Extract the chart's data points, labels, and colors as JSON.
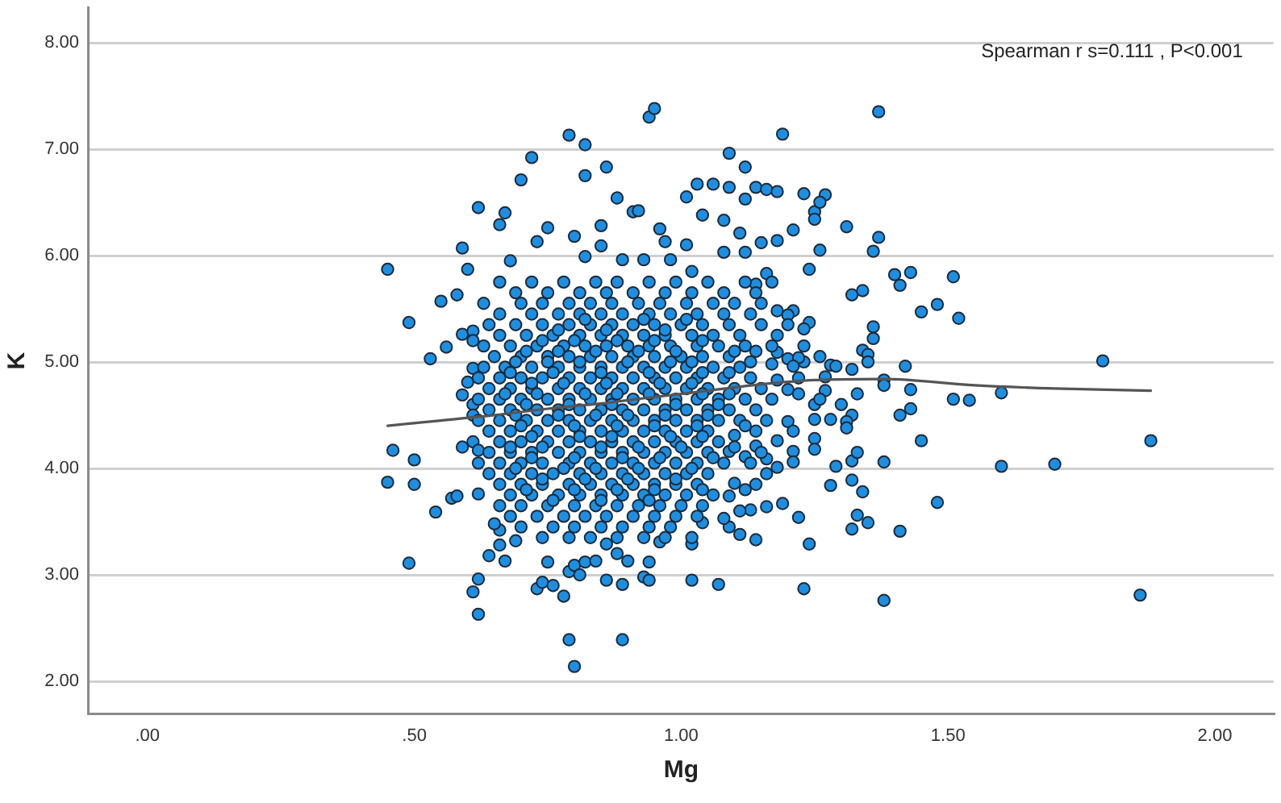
{
  "chart_data": {
    "type": "scatter",
    "xlabel": "Mg",
    "ylabel": "K",
    "annotations": [
      "Spearman r s=0.111 , P<0.001"
    ],
    "xlim": [
      -0.11,
      2.11
    ],
    "ylim": [
      1.69,
      8.33
    ],
    "xticks": [
      {
        "value": 0,
        "label": ".00"
      },
      {
        "value": 0.5,
        "label": ".50"
      },
      {
        "value": 1,
        "label": "1.00"
      },
      {
        "value": 1.5,
        "label": "1.50"
      },
      {
        "value": 2,
        "label": "2.00"
      }
    ],
    "yticks": [
      {
        "value": 2,
        "label": "2.00"
      },
      {
        "value": 3,
        "label": "3.00"
      },
      {
        "value": 4,
        "label": "4.00"
      },
      {
        "value": 5,
        "label": "5.00"
      },
      {
        "value": 6,
        "label": "6.00"
      },
      {
        "value": 7,
        "label": "7.00"
      },
      {
        "value": 8,
        "label": "8.00"
      }
    ],
    "grid": "y",
    "series": [
      {
        "type": "scatter",
        "color": "#1e8fe0",
        "marker": "circle",
        "x": [
          0.45,
          0.49,
          0.55,
          0.58,
          0.59,
          0.6,
          0.62,
          0.53,
          0.56,
          0.59,
          0.61,
          0.61,
          0.61,
          0.6,
          0.59,
          0.61,
          0.61,
          0.46,
          0.5,
          0.45,
          0.5,
          0.54,
          0.57,
          0.58,
          0.59,
          0.61,
          0.62,
          0.62,
          0.62,
          0.49,
          0.61,
          0.62,
          0.62,
          0.94,
          0.95,
          1.37,
          0.79,
          0.82,
          0.72,
          0.7,
          0.82,
          0.86,
          0.88,
          0.67,
          0.66,
          1.09,
          1.12,
          1.19,
          1.03,
          1.06,
          1.01,
          1.09,
          1.14,
          1.16,
          1.18,
          1.12,
          1.04,
          1.08,
          1.23,
          1.27,
          1.25,
          1.21,
          1.11,
          1.15,
          1.18,
          1.26,
          1.24,
          0.91,
          0.92,
          0.85,
          0.8,
          0.75,
          0.73,
          0.96,
          0.97,
          1.01,
          1.08,
          1.12,
          1.16,
          1.14,
          0.68,
          0.82,
          0.85,
          0.89,
          0.93,
          0.98,
          1.02,
          1.18,
          1.21,
          1.24,
          1.23,
          1.2,
          1.23,
          1.28,
          1.27,
          1.25,
          1.17,
          1.14,
          1.26,
          1.25,
          1.31,
          1.37,
          1.36,
          1.4,
          1.43,
          1.41,
          1.51,
          1.32,
          1.34,
          1.45,
          1.48,
          1.52,
          1.2,
          1.36,
          1.36,
          1.34,
          1.35,
          1.35,
          1.18,
          1.22,
          1.21,
          1.29,
          1.32,
          1.27,
          1.42,
          1.79,
          1.38,
          1.38,
          1.43,
          1.51,
          1.54,
          1.6,
          1.33,
          1.26,
          1.3,
          1.32,
          1.43,
          1.41,
          1.31,
          1.31,
          1.45,
          1.88,
          1.21,
          1.21,
          1.29,
          1.32,
          1.33,
          1.38,
          1.6,
          1.7,
          1.28,
          1.32,
          1.34,
          1.19,
          1.22,
          1.48,
          1.33,
          1.35,
          1.32,
          1.41,
          1.24,
          1.23,
          1.38,
          1.86,
          1.18,
          1.2,
          1.2,
          1.25,
          1.28,
          1.25,
          1.25,
          1.18,
          1.22,
          1.18,
          0.79,
          0.89,
          0.8,
          0.73,
          0.74,
          0.76,
          0.78,
          0.79,
          0.8,
          0.81,
          0.75,
          0.82,
          0.84,
          0.86,
          0.89,
          0.9,
          0.93,
          0.94,
          0.94,
          1.02,
          1.07,
          1.02,
          0.96,
          0.88,
          0.86,
          0.69,
          0.67,
          0.64,
          0.66,
          0.66,
          0.65,
          1.04,
          1.11,
          1.14,
          1.09,
          1.16,
          1.13,
          1.11,
          1.08,
          1.14,
          1.16,
          1.14,
          1.12,
          1.1,
          1.09,
          1.1,
          1.12,
          1.09,
          0.66,
          0.72,
          0.78,
          0.84,
          0.88,
          0.94,
          0.99,
          1.05,
          1.12,
          1.17,
          0.69,
          0.75,
          0.81,
          0.86,
          0.91,
          0.97,
          1.02,
          1.08,
          1.14,
          0.63,
          0.7,
          0.74,
          0.79,
          0.83,
          0.87,
          0.92,
          0.96,
          1.01,
          1.06,
          1.1,
          1.15,
          0.66,
          0.72,
          0.77,
          0.81,
          0.85,
          0.89,
          0.94,
          0.98,
          1.03,
          1.08,
          1.13,
          0.64,
          0.69,
          0.74,
          0.79,
          0.83,
          0.87,
          0.91,
          0.95,
          1.0,
          1.04,
          1.09,
          1.15,
          1.2,
          0.66,
          0.71,
          0.76,
          0.81,
          0.85,
          0.89,
          0.93,
          0.97,
          1.02,
          1.06,
          1.11,
          1.18,
          0.63,
          0.68,
          0.73,
          0.78,
          0.82,
          0.86,
          0.9,
          0.94,
          0.98,
          1.03,
          1.07,
          1.12,
          1.17,
          1.23,
          0.65,
          0.7,
          0.75,
          0.79,
          0.83,
          0.87,
          0.91,
          0.95,
          1.0,
          1.04,
          1.09,
          1.26,
          0.63,
          0.67,
          0.72,
          0.77,
          0.81,
          0.85,
          0.89,
          0.93,
          0.97,
          1.01,
          1.06,
          1.11,
          0.62,
          0.66,
          0.7,
          0.74,
          0.79,
          0.83,
          0.87,
          0.91,
          0.95,
          0.99,
          1.03,
          1.08,
          1.13,
          1.22,
          0.64,
          0.68,
          0.72,
          0.77,
          0.81,
          0.85,
          0.89,
          0.93,
          0.97,
          1.01,
          1.05,
          1.1,
          1.15,
          0.62,
          0.66,
          0.7,
          0.75,
          0.79,
          0.83,
          0.87,
          0.91,
          0.95,
          0.99,
          1.03,
          1.07,
          1.12,
          1.17,
          0.64,
          0.68,
          0.73,
          0.77,
          0.81,
          0.85,
          0.89,
          0.93,
          0.97,
          1.01,
          1.05,
          1.09,
          1.14,
          0.62,
          0.66,
          0.71,
          0.75,
          0.79,
          0.83,
          0.87,
          0.91,
          0.95,
          0.99,
          1.03,
          1.07,
          1.11,
          1.16,
          0.64,
          0.68,
          0.73,
          0.77,
          0.81,
          0.85,
          0.89,
          0.93,
          0.97,
          1.01,
          1.05,
          1.14,
          1.21,
          0.66,
          0.7,
          0.75,
          0.79,
          0.83,
          0.87,
          0.91,
          0.95,
          0.99,
          1.03,
          1.07,
          0.64,
          0.68,
          0.72,
          0.77,
          0.81,
          0.85,
          0.89,
          0.93,
          0.97,
          1.01,
          1.05,
          1.15,
          0.66,
          0.7,
          0.74,
          0.79,
          0.83,
          0.87,
          0.91,
          0.95,
          0.99,
          1.03,
          1.08,
          1.13,
          0.64,
          0.68,
          0.72,
          0.76,
          0.81,
          0.85,
          0.89,
          0.93,
          0.97,
          1.01,
          1.05,
          1.16,
          0.66,
          0.7,
          0.74,
          0.79,
          0.83,
          0.87,
          0.91,
          0.95,
          0.99,
          1.03,
          0.68,
          0.72,
          0.77,
          0.81,
          0.85,
          0.89,
          0.93,
          0.97,
          1.01,
          1.06,
          0.66,
          0.7,
          0.75,
          0.8,
          0.84,
          0.88,
          0.92,
          0.96,
          1.0,
          1.04,
          0.68,
          0.73,
          0.78,
          0.82,
          0.86,
          0.91,
          0.95,
          0.99,
          1.03,
          0.7,
          0.76,
          0.8,
          0.85,
          0.89,
          0.94,
          0.98,
          0.74,
          0.79,
          0.83,
          0.88,
          0.93,
          0.97,
          1.02,
          0.82,
          0.93,
          1.01,
          0.77,
          0.86,
          0.97,
          0.74,
          0.8,
          0.88,
          0.95,
          1.04,
          0.71,
          0.77,
          0.84,
          0.92,
          0.99,
          1.1,
          0.69,
          0.75,
          0.81,
          0.9,
          0.98,
          1.02,
          1.13,
          0.68,
          0.76,
          0.85,
          0.94,
          1.04,
          1.09,
          0.72,
          0.78,
          0.86,
          0.96,
          1.02,
          0.67,
          0.73,
          0.82,
          0.88,
          0.94,
          1.04,
          1.09,
          0.71,
          0.79,
          0.87,
          0.99,
          1.07,
          0.69,
          0.77,
          0.84,
          0.9,
          0.97,
          1.05,
          0.7,
          0.8,
          0.88,
          0.95,
          1.03,
          1.12,
          0.72,
          0.81,
          0.87,
          0.98,
          1.04,
          0.68,
          0.74,
          0.85,
          0.92,
          1.0,
          1.1,
          0.72,
          0.8,
          0.89,
          0.96,
          1.06,
          0.69,
          0.78,
          0.84,
          0.92,
          1.02,
          0.74,
          0.82,
          0.9,
          0.99,
          0.71,
          0.8,
          0.88,
          0.95,
          1.04,
          0.76,
          0.85,
          0.94
        ],
        "values": [
          5.87,
          5.37,
          5.57,
          5.63,
          6.07,
          5.87,
          6.45,
          5.03,
          5.14,
          5.26,
          5.29,
          5.2,
          4.94,
          4.81,
          4.69,
          4.6,
          4.5,
          4.17,
          4.08,
          3.87,
          3.85,
          3.59,
          3.72,
          3.74,
          4.2,
          4.25,
          4.17,
          4.05,
          3.76,
          3.11,
          2.84,
          2.96,
          2.63,
          7.3,
          7.38,
          7.35,
          7.13,
          7.04,
          6.92,
          6.71,
          6.75,
          6.83,
          6.54,
          6.4,
          6.29,
          6.96,
          6.83,
          7.14,
          6.67,
          6.67,
          6.55,
          6.64,
          6.64,
          6.62,
          6.6,
          6.53,
          6.38,
          6.33,
          6.58,
          6.57,
          6.41,
          6.24,
          6.21,
          6.12,
          6.14,
          6.05,
          5.87,
          6.41,
          6.42,
          6.28,
          6.18,
          6.26,
          6.13,
          6.25,
          6.13,
          6.1,
          6.03,
          6.03,
          5.83,
          5.73,
          5.95,
          5.99,
          6.09,
          5.96,
          5.96,
          5.96,
          5.85,
          5.48,
          5.48,
          5.37,
          5.31,
          5.03,
          5.0,
          4.97,
          4.73,
          4.6,
          4.98,
          5.1,
          6.5,
          6.34,
          6.27,
          6.17,
          6.04,
          5.82,
          5.84,
          5.72,
          5.8,
          5.63,
          5.67,
          5.47,
          5.54,
          5.41,
          5.44,
          5.33,
          5.22,
          5.11,
          5.07,
          5.0,
          5.09,
          5.04,
          4.96,
          4.96,
          4.93,
          4.86,
          4.96,
          5.01,
          4.83,
          4.78,
          4.74,
          4.65,
          4.64,
          4.71,
          4.7,
          4.65,
          4.6,
          4.5,
          4.56,
          4.5,
          4.44,
          4.38,
          4.26,
          4.26,
          4.16,
          4.06,
          4.02,
          4.07,
          4.15,
          4.06,
          4.02,
          4.04,
          3.84,
          3.89,
          3.78,
          3.67,
          3.54,
          3.68,
          3.56,
          3.49,
          3.43,
          3.41,
          3.29,
          2.87,
          2.76,
          2.81,
          4.26,
          4.74,
          4.44,
          4.46,
          4.46,
          4.28,
          4.18,
          4.83,
          4.7,
          4.01,
          2.39,
          2.39,
          2.14,
          2.87,
          2.93,
          2.9,
          2.8,
          3.03,
          3.09,
          3.0,
          3.12,
          3.12,
          3.13,
          2.95,
          2.91,
          3.13,
          2.98,
          2.95,
          3.12,
          2.95,
          2.91,
          3.29,
          3.31,
          3.2,
          3.29,
          3.32,
          3.13,
          3.18,
          3.28,
          3.42,
          3.48,
          3.49,
          3.38,
          3.33,
          3.45,
          3.64,
          3.61,
          3.6,
          3.53,
          4.21,
          4.09,
          3.85,
          3.8,
          3.86,
          3.74,
          4.31,
          4.11,
          4.16,
          5.75,
          5.75,
          5.75,
          5.75,
          5.75,
          5.75,
          5.75,
          5.75,
          5.75,
          5.75,
          5.65,
          5.65,
          5.65,
          5.65,
          5.65,
          5.65,
          5.65,
          5.65,
          5.65,
          5.55,
          5.55,
          5.55,
          5.55,
          5.55,
          5.55,
          5.55,
          5.55,
          5.55,
          5.55,
          5.55,
          5.55,
          5.45,
          5.45,
          5.45,
          5.45,
          5.45,
          5.45,
          5.45,
          5.45,
          5.45,
          5.45,
          5.45,
          5.35,
          5.35,
          5.35,
          5.35,
          5.35,
          5.35,
          5.35,
          5.35,
          5.35,
          5.35,
          5.35,
          5.35,
          5.35,
          5.25,
          5.25,
          5.25,
          5.25,
          5.25,
          5.25,
          5.25,
          5.25,
          5.25,
          5.25,
          5.25,
          5.25,
          5.15,
          5.15,
          5.15,
          5.15,
          5.15,
          5.15,
          5.15,
          5.15,
          5.15,
          5.15,
          5.15,
          5.15,
          5.15,
          5.15,
          5.05,
          5.05,
          5.05,
          5.05,
          5.05,
          5.05,
          5.05,
          5.05,
          5.05,
          5.05,
          5.05,
          5.05,
          4.95,
          4.95,
          4.95,
          4.95,
          4.95,
          4.95,
          4.95,
          4.95,
          4.95,
          4.95,
          4.95,
          4.95,
          4.85,
          4.85,
          4.85,
          4.85,
          4.85,
          4.85,
          4.85,
          4.85,
          4.85,
          4.85,
          4.85,
          4.85,
          4.85,
          4.85,
          4.75,
          4.75,
          4.75,
          4.75,
          4.75,
          4.75,
          4.75,
          4.75,
          4.75,
          4.75,
          4.75,
          4.75,
          4.75,
          4.65,
          4.65,
          4.65,
          4.65,
          4.65,
          4.65,
          4.65,
          4.65,
          4.65,
          4.65,
          4.65,
          4.65,
          4.65,
          4.65,
          4.55,
          4.55,
          4.55,
          4.55,
          4.55,
          4.55,
          4.55,
          4.55,
          4.55,
          4.55,
          4.55,
          4.55,
          4.55,
          4.45,
          4.45,
          4.45,
          4.45,
          4.45,
          4.45,
          4.45,
          4.45,
          4.45,
          4.45,
          4.45,
          4.45,
          4.45,
          4.45,
          4.35,
          4.35,
          4.35,
          4.35,
          4.35,
          4.35,
          4.35,
          4.35,
          4.35,
          4.35,
          4.35,
          4.35,
          4.35,
          4.25,
          4.25,
          4.25,
          4.25,
          4.25,
          4.25,
          4.25,
          4.25,
          4.25,
          4.25,
          4.25,
          4.15,
          4.15,
          4.15,
          4.15,
          4.15,
          4.15,
          4.15,
          4.15,
          4.15,
          4.15,
          4.15,
          4.15,
          4.05,
          4.05,
          4.05,
          4.05,
          4.05,
          4.05,
          4.05,
          4.05,
          4.05,
          4.05,
          4.05,
          4.05,
          3.95,
          3.95,
          3.95,
          3.95,
          3.95,
          3.95,
          3.95,
          3.95,
          3.95,
          3.95,
          3.95,
          3.95,
          3.85,
          3.85,
          3.85,
          3.85,
          3.85,
          3.85,
          3.85,
          3.85,
          3.85,
          3.85,
          3.75,
          3.75,
          3.75,
          3.75,
          3.75,
          3.75,
          3.75,
          3.75,
          3.75,
          3.75,
          3.65,
          3.65,
          3.65,
          3.65,
          3.65,
          3.65,
          3.65,
          3.65,
          3.65,
          3.65,
          3.55,
          3.55,
          3.55,
          3.55,
          3.55,
          3.55,
          3.55,
          3.55,
          3.55,
          3.45,
          3.45,
          3.45,
          3.45,
          3.45,
          3.45,
          3.45,
          3.35,
          3.35,
          3.35,
          3.35,
          3.35,
          3.35,
          3.35,
          5.4,
          5.4,
          5.4,
          5.3,
          5.3,
          5.3,
          5.2,
          5.2,
          5.2,
          5.2,
          5.2,
          5.1,
          5.1,
          5.1,
          5.1,
          5.1,
          5.1,
          5.0,
          5.0,
          5.0,
          5.0,
          5.0,
          5.0,
          5.0,
          4.9,
          4.9,
          4.9,
          4.9,
          4.9,
          4.9,
          4.8,
          4.8,
          4.8,
          4.8,
          4.8,
          4.7,
          4.7,
          4.7,
          4.7,
          4.7,
          4.7,
          4.7,
          4.6,
          4.6,
          4.6,
          4.6,
          4.6,
          4.5,
          4.5,
          4.5,
          4.5,
          4.5,
          4.5,
          4.4,
          4.4,
          4.4,
          4.4,
          4.4,
          4.4,
          4.3,
          4.3,
          4.3,
          4.3,
          4.3,
          4.2,
          4.2,
          4.2,
          4.2,
          4.2,
          4.2,
          4.1,
          4.1,
          4.1,
          4.1,
          4.1,
          4.0,
          4.0,
          4.0,
          4.0,
          4.0,
          3.9,
          3.9,
          3.9,
          3.9,
          3.8,
          3.8,
          3.8,
          3.8,
          3.8,
          3.7,
          3.7,
          3.7
        ]
      },
      {
        "type": "line",
        "color": "#555555",
        "marker": "none",
        "line_style": "solid",
        "x": [
          0.45,
          0.55,
          0.65,
          0.75,
          0.85,
          0.95,
          1.05,
          1.15,
          1.25,
          1.38,
          1.55,
          1.7,
          1.88
        ],
        "values": [
          4.4,
          4.45,
          4.5,
          4.56,
          4.61,
          4.67,
          4.73,
          4.79,
          4.83,
          4.84,
          4.78,
          4.75,
          4.73
        ]
      }
    ]
  }
}
